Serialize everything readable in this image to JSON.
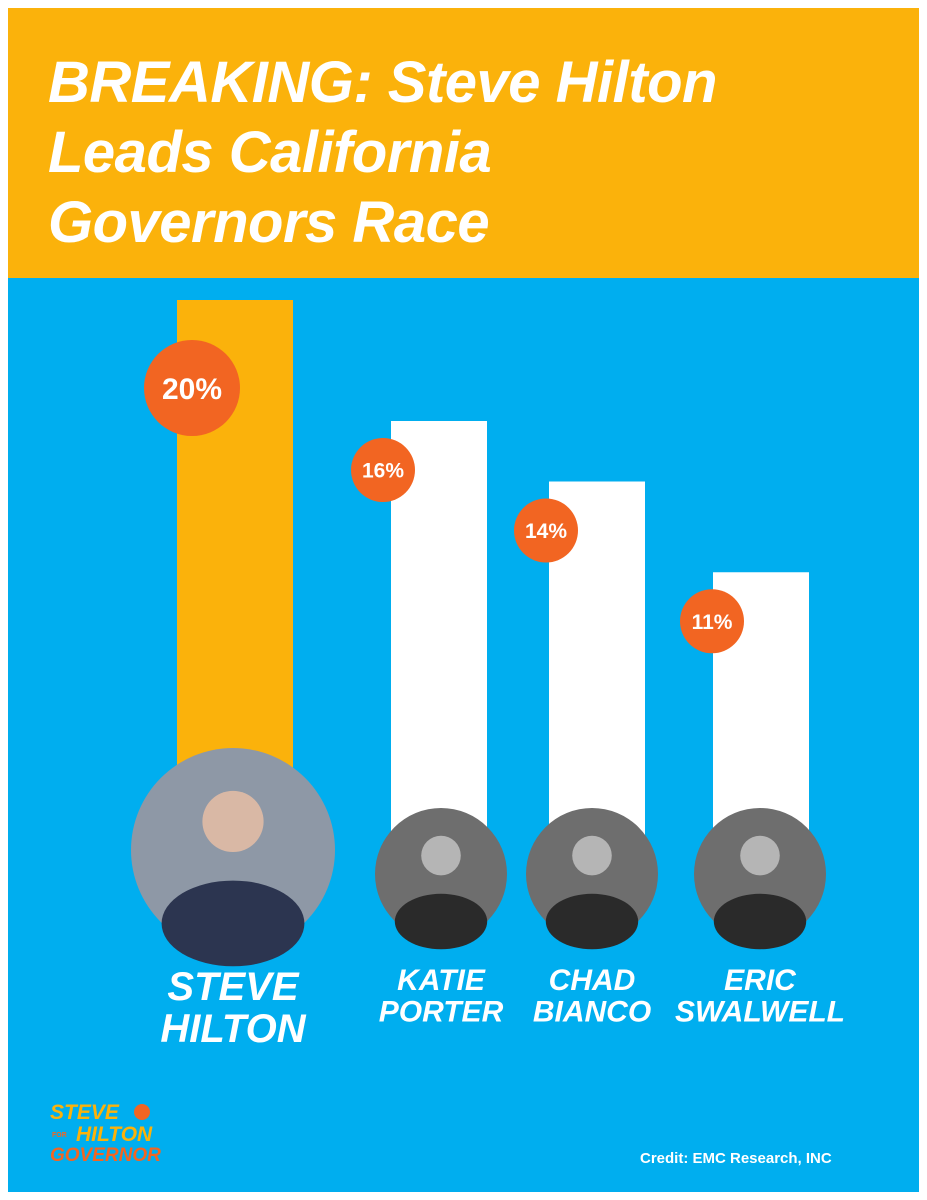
{
  "headline": {
    "line1": "BREAKING: Steve Hilton",
    "line2": "Leads California",
    "line3": "Governors Race"
  },
  "colors": {
    "header_bg": "#FBB20B",
    "panel_bg": "#00AEEF",
    "highlight_bar": "#FBB20B",
    "other_bar": "#FFFFFF",
    "badge": "#F26522",
    "text": "#FFFFFF"
  },
  "chart_data": {
    "type": "bar",
    "title": "BREAKING: Steve Hilton Leads California Governors Race",
    "categories": [
      "STEVE HILTON",
      "KATIE PORTER",
      "CHAD BIANCO",
      "ERIC SWALWELL"
    ],
    "series": [
      {
        "values": [
          20,
          16,
          14,
          11
        ]
      }
    ],
    "value_labels": [
      "20%",
      "16%",
      "14%",
      "11%"
    ],
    "name_lines": [
      [
        "STEVE",
        "HILTON"
      ],
      [
        "KATIE",
        "PORTER"
      ],
      [
        "CHAD",
        "BIANCO"
      ],
      [
        "ERIC",
        "SWALWELL"
      ]
    ],
    "highlight_index": 0,
    "ylim": [
      0,
      20
    ],
    "grid": false,
    "xlabel": "",
    "ylabel": ""
  },
  "credit": "Credit: EMC Research, INC",
  "logo": {
    "line1": "STEVE",
    "line_for": "FOR",
    "line2": "HILTON",
    "line3": "GOVERNOR"
  }
}
